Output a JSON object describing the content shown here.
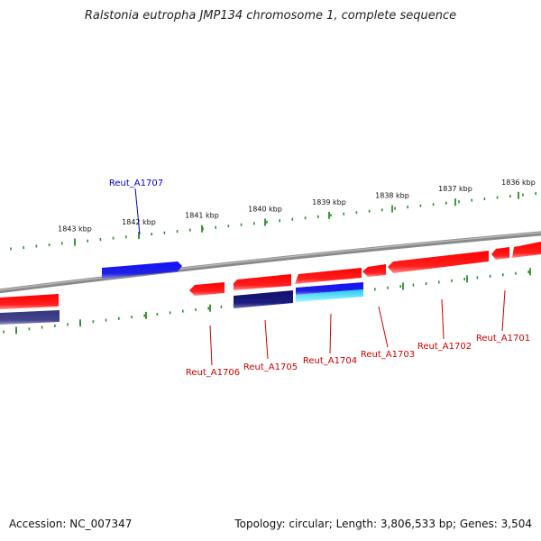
{
  "title": "Ralstonia eutropha JMP134 chromosome 1, complete sequence",
  "footer": {
    "accession": "Accession: NC_007347",
    "summary": "Topology: circular; Length: 3,806,533 bp; Genes: 3,504"
  },
  "scale_labels": [
    "1843 kbp",
    "1842 kbp",
    "1841 kbp",
    "1840 kbp",
    "1839 kbp",
    "1838 kbp",
    "1837 kbp",
    "1836 kbp"
  ],
  "gene_labels": {
    "forward": [
      "Reut_A1707"
    ],
    "reverse": [
      "Reut_A1706",
      "Reut_A1705",
      "Reut_A1704",
      "Reut_A1703",
      "Reut_A1702",
      "Reut_A1701"
    ]
  },
  "colors": {
    "backbone": "#7a7a7a",
    "tick": "#2e8b2e",
    "red_gene": "#ff1a1a",
    "blue_gene": "#1a1aee",
    "navy_gene": "#1a1a80",
    "cyan_gene": "#22d8e8",
    "purple_gene": "#3c3c88",
    "forward_label": "#0000cc",
    "reverse_label": "#cc0000"
  }
}
